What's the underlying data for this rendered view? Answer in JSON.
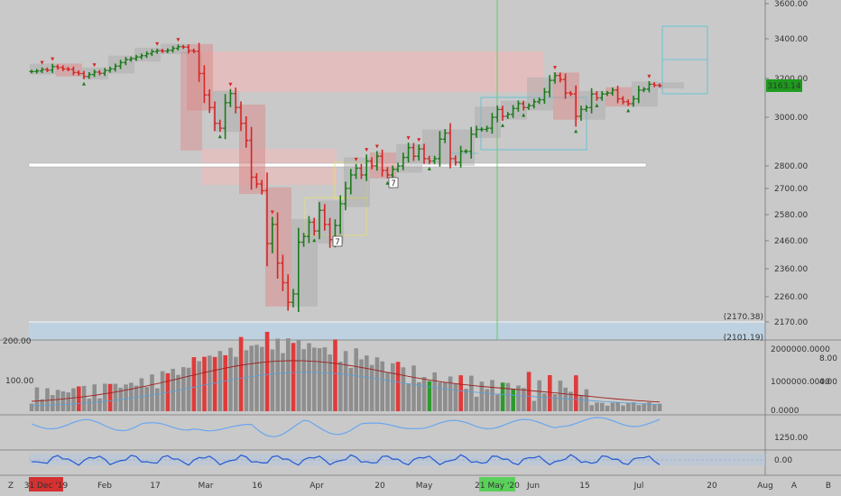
{
  "chart_data": {
    "type": "bar",
    "main": {
      "y_ticks": [
        "3600.00",
        "3400.00",
        "3200.00",
        "3000.00",
        "2800.00",
        "2700.00",
        "2580.00",
        "2460.00",
        "2360.00",
        "2260.00",
        "2170.00"
      ],
      "y_tick_values": [
        3600,
        3400,
        3200,
        3000,
        2800,
        2700,
        2580,
        2460,
        2360,
        2260,
        2170
      ],
      "last_price": "3163.14",
      "last_value": 3163.14,
      "low_label": "(2170.38)",
      "low_label2": "(2101.19)",
      "closes": [
        3235,
        3238,
        3245,
        3242,
        3260,
        3255,
        3248,
        3246,
        3230,
        3225,
        3210,
        3220,
        3232,
        3226,
        3240,
        3248,
        3262,
        3280,
        3295,
        3300,
        3308,
        3315,
        3325,
        3335,
        3340,
        3338,
        3342,
        3352,
        3360,
        3358,
        3340,
        3337,
        3225,
        3115,
        3050,
        2975,
        2955,
        3075,
        3122,
        3050,
        2975,
        2905,
        2750,
        2720,
        2690,
        2450,
        2535,
        2380,
        2310,
        2240,
        2270,
        2455,
        2480,
        2545,
        2505,
        2600,
        2535,
        2465,
        2530,
        2630,
        2700,
        2760,
        2790,
        2760,
        2820,
        2800,
        2840,
        2780,
        2760,
        2785,
        2800,
        2835,
        2875,
        2840,
        2870,
        2830,
        2820,
        2830,
        2910,
        2935,
        2830,
        2815,
        2860,
        2860,
        2930,
        2950,
        2950,
        2955,
        3000,
        3040,
        3005,
        3015,
        3045,
        3070,
        3050,
        3060,
        3080,
        3090,
        3130,
        3190,
        3215,
        3195,
        3125,
        3120,
        3005,
        3040,
        3050,
        3120,
        3100,
        3120,
        3125,
        3140,
        3095,
        3080,
        3070,
        3095,
        3140,
        3145,
        3170,
        3165,
        3163
      ]
    },
    "volume": {
      "y_ticks": [
        "200.00",
        "100.00"
      ],
      "right_ticks": [
        "2000000.0000",
        "1000000.0000",
        "0.0000"
      ],
      "right_ticks2": [
        "8.00",
        "4.00"
      ]
    },
    "indicator1": {
      "right_ticks": [
        "1250.00"
      ]
    },
    "indicator2": {
      "right_ticks": [
        "0.00"
      ]
    },
    "x_axis": {
      "labels": [
        "31 Dec '19",
        "Feb",
        "17",
        "Mar",
        "16",
        "Apr",
        "20",
        "May",
        "21 May '20",
        "Jun",
        "15",
        "Jul",
        "20",
        "Aug"
      ],
      "left_letter": "Z",
      "right_letter_a": "A",
      "right_letter_b": "B"
    },
    "annotations": [
      "7",
      "7"
    ]
  },
  "colors": {
    "background": "#c9c9c9",
    "up": "#1b7a1b",
    "down": "#d42626",
    "volume_neutral": "#8e8e8e",
    "volume_red": "#e03a3a",
    "volume_green": "#2e9a2e",
    "supply_zone": "#e8bcbc",
    "demand_zone": "#bcd3e6",
    "last_price_bg": "#1d9a1d",
    "ma_red": "#a02020",
    "line_blue": "#4d8de0"
  }
}
